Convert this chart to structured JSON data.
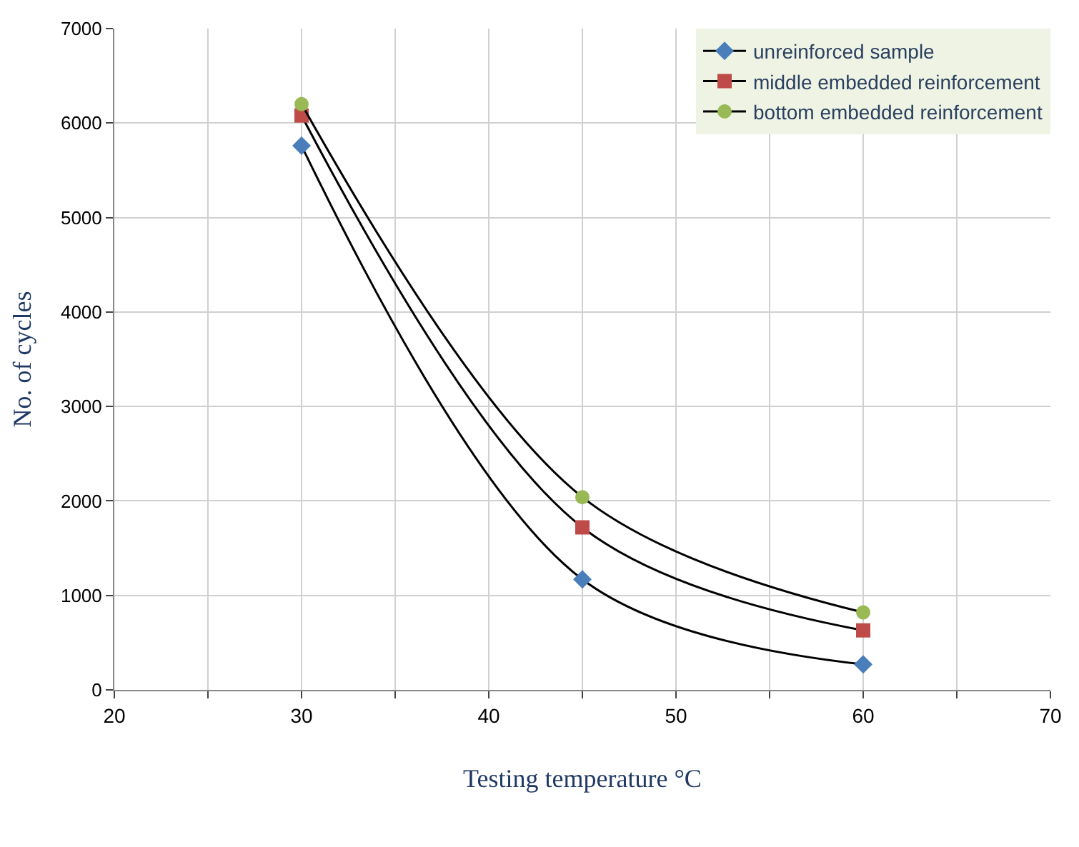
{
  "chart_data": {
    "type": "line",
    "xlabel": "Testing temperature °C",
    "ylabel": "No. of cycles",
    "x": [
      30,
      45,
      60
    ],
    "series": [
      {
        "name": "unreinforced sample",
        "color": "#4a7ebb",
        "marker": "diamond",
        "values": [
          5760,
          1170,
          270
        ]
      },
      {
        "name": "middle embedded reinforcement",
        "color": "#be4b48",
        "marker": "square",
        "values": [
          6080,
          1720,
          630
        ]
      },
      {
        "name": "bottom embedded reinforcement",
        "color": "#98b954",
        "marker": "circle",
        "values": [
          6200,
          2040,
          820
        ]
      }
    ],
    "xlim": [
      20,
      70
    ],
    "xticks": [
      20,
      {
        "value": 25,
        "label": null
      },
      30,
      {
        "value": 35,
        "label": null
      },
      40,
      {
        "value": 45,
        "label": null
      },
      50,
      {
        "value": 55,
        "label": null
      },
      60,
      {
        "value": 65,
        "label": null
      },
      70
    ],
    "ylim": [
      0,
      7000
    ],
    "yticks": [
      0,
      1000,
      2000,
      3000,
      4000,
      5000,
      6000,
      7000
    ],
    "grid": true,
    "legend": "top right"
  }
}
